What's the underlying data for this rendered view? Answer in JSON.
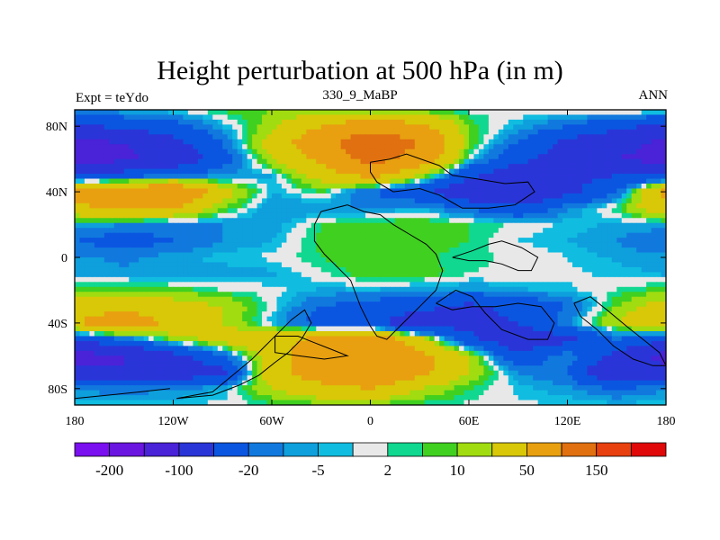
{
  "chart_data": {
    "type": "heatmap",
    "title": "Height perturbation at 500 hPa (in m)",
    "left_string": "Expt = teYdo",
    "center_string": "330_9_MaBP",
    "right_string": "ANN",
    "xlabel": "",
    "ylabel": "",
    "xlim": [
      -180,
      180
    ],
    "ylim": [
      -90,
      90
    ],
    "x_ticks": [
      {
        "value": -180,
        "label": "180"
      },
      {
        "value": -120,
        "label": "120W"
      },
      {
        "value": -60,
        "label": "60W"
      },
      {
        "value": 0,
        "label": "0"
      },
      {
        "value": 60,
        "label": "60E"
      },
      {
        "value": 120,
        "label": "120E"
      },
      {
        "value": 180,
        "label": "180"
      }
    ],
    "y_ticks": [
      {
        "value": 80,
        "label": "80N"
      },
      {
        "value": 40,
        "label": "40N"
      },
      {
        "value": 0,
        "label": "0"
      },
      {
        "value": -40,
        "label": "40S"
      },
      {
        "value": -80,
        "label": "80S"
      }
    ],
    "contour_levels": [
      -200,
      -150,
      -100,
      -50,
      -20,
      -10,
      -5,
      -2,
      2,
      5,
      10,
      20,
      50,
      100,
      150,
      200
    ],
    "colors": [
      "#7a0ff0",
      "#6a15e0",
      "#4a22d8",
      "#2a35d8",
      "#0b56e0",
      "#1179de",
      "#0e9fdd",
      "#10bde0",
      "#e8e8e8",
      "#10d890",
      "#40d020",
      "#a0dc10",
      "#d8c808",
      "#e8a010",
      "#e07010",
      "#e8400e",
      "#e00808"
    ],
    "colorbar_labels": [
      {
        "box": 1,
        "label": "-200"
      },
      {
        "box": 3,
        "label": "-100"
      },
      {
        "box": 5,
        "label": "-20"
      },
      {
        "box": 7,
        "label": "-5"
      },
      {
        "box": 9,
        "label": "2"
      },
      {
        "box": 11,
        "label": "10"
      },
      {
        "box": 13,
        "label": "50"
      },
      {
        "box": 15,
        "label": "150"
      }
    ],
    "field": {
      "lon": [
        -180,
        -150,
        -120,
        -90,
        -60,
        -30,
        0,
        30,
        60,
        90,
        120,
        150,
        180
      ],
      "lat": [
        90,
        80,
        70,
        60,
        50,
        40,
        30,
        20,
        10,
        0,
        -10,
        -20,
        -30,
        -40,
        -50,
        -60,
        -70,
        -80,
        -90
      ],
      "values": [
        [
          -8,
          -4,
          0,
          6,
          10,
          8,
          6,
          3,
          1,
          1,
          3,
          8,
          5
        ],
        [
          -60,
          -40,
          -30,
          -5,
          15,
          50,
          80,
          60,
          8,
          -5,
          -20,
          -40,
          -60
        ],
        [
          -110,
          -100,
          -60,
          -20,
          30,
          80,
          140,
          100,
          10,
          -20,
          -60,
          -80,
          -110
        ],
        [
          -120,
          -110,
          -80,
          -30,
          20,
          60,
          120,
          80,
          0,
          -40,
          -70,
          -100,
          -120
        ],
        [
          -40,
          -30,
          -20,
          -10,
          -5,
          30,
          60,
          20,
          -40,
          -80,
          -60,
          -50,
          -40
        ],
        [
          60,
          80,
          100,
          30,
          -5,
          5,
          -20,
          -40,
          -90,
          -100,
          -60,
          -20,
          60
        ],
        [
          40,
          60,
          50,
          10,
          -10,
          -10,
          -10,
          -5,
          -20,
          -40,
          -10,
          5,
          40
        ],
        [
          -6,
          -10,
          -15,
          -10,
          -8,
          5,
          8,
          10,
          5,
          1,
          -3,
          -6,
          -6
        ],
        [
          -20,
          -30,
          -20,
          -10,
          -5,
          6,
          10,
          8,
          5,
          -2,
          -5,
          -10,
          -20
        ],
        [
          -8,
          -12,
          -6,
          -3,
          -1,
          5,
          10,
          6,
          3,
          1,
          -2,
          -6,
          -8
        ],
        [
          -6,
          -8,
          -10,
          -8,
          -6,
          1,
          8,
          8,
          2,
          1,
          -1,
          -3,
          -6
        ],
        [
          8,
          10,
          8,
          2,
          0,
          -6,
          -5,
          -8,
          -10,
          -6,
          -3,
          2,
          8
        ],
        [
          30,
          40,
          30,
          20,
          0,
          -20,
          -30,
          -40,
          -60,
          -40,
          -20,
          10,
          30
        ],
        [
          50,
          80,
          40,
          20,
          -5,
          -30,
          -40,
          -80,
          -60,
          -50,
          -10,
          20,
          50
        ],
        [
          -40,
          -20,
          10,
          30,
          40,
          60,
          80,
          30,
          -40,
          -80,
          -60,
          -20,
          -40
        ],
        [
          -120,
          -100,
          -60,
          -20,
          30,
          80,
          100,
          60,
          20,
          -40,
          -10,
          -60,
          -120
        ],
        [
          -80,
          -100,
          -80,
          -60,
          40,
          70,
          90,
          60,
          20,
          -10,
          -20,
          -100,
          -80
        ],
        [
          -10,
          -15,
          -10,
          -5,
          20,
          40,
          50,
          20,
          5,
          -3,
          -8,
          -20,
          -10
        ],
        [
          -3,
          -3,
          -2,
          -1,
          3,
          6,
          6,
          3,
          1,
          -1,
          -2,
          -3,
          -3
        ]
      ]
    },
    "coastlines": [
      [
        [
          0,
          58
        ],
        [
          12,
          60
        ],
        [
          22,
          63
        ],
        [
          42,
          56
        ],
        [
          50,
          50
        ],
        [
          64,
          48
        ],
        [
          82,
          45
        ],
        [
          96,
          46
        ],
        [
          100,
          40
        ],
        [
          88,
          32
        ],
        [
          72,
          30
        ],
        [
          56,
          30
        ],
        [
          42,
          38
        ],
        [
          30,
          42
        ],
        [
          14,
          40
        ],
        [
          4,
          46
        ],
        [
          0,
          52
        ],
        [
          0,
          58
        ]
      ],
      [
        [
          -30,
          28
        ],
        [
          -14,
          32
        ],
        [
          -4,
          28
        ],
        [
          6,
          26
        ],
        [
          14,
          20
        ],
        [
          24,
          14
        ],
        [
          34,
          8
        ],
        [
          40,
          2
        ],
        [
          44,
          -8
        ],
        [
          40,
          -20
        ],
        [
          30,
          -30
        ],
        [
          20,
          -40
        ],
        [
          10,
          -50
        ],
        [
          4,
          -48
        ],
        [
          0,
          -42
        ],
        [
          -6,
          -30
        ],
        [
          -12,
          -14
        ],
        [
          -20,
          -6
        ],
        [
          -28,
          2
        ],
        [
          -34,
          10
        ],
        [
          -34,
          20
        ],
        [
          -30,
          28
        ]
      ],
      [
        [
          50,
          0
        ],
        [
          62,
          4
        ],
        [
          72,
          8
        ],
        [
          80,
          10
        ],
        [
          92,
          6
        ],
        [
          102,
          0
        ],
        [
          98,
          -8
        ],
        [
          90,
          -8
        ],
        [
          80,
          -4
        ],
        [
          70,
          -2
        ],
        [
          60,
          -2
        ],
        [
          50,
          0
        ]
      ],
      [
        [
          40,
          -28
        ],
        [
          52,
          -20
        ],
        [
          62,
          -24
        ],
        [
          70,
          -34
        ],
        [
          80,
          -44
        ],
        [
          96,
          -50
        ],
        [
          108,
          -50
        ],
        [
          112,
          -40
        ],
        [
          104,
          -30
        ],
        [
          90,
          -28
        ],
        [
          76,
          -30
        ],
        [
          62,
          -30
        ],
        [
          50,
          -32
        ],
        [
          40,
          -28
        ]
      ],
      [
        [
          124,
          -28
        ],
        [
          134,
          -24
        ],
        [
          144,
          -32
        ],
        [
          156,
          -42
        ],
        [
          166,
          -50
        ],
        [
          176,
          -58
        ],
        [
          180,
          -66
        ],
        [
          172,
          -66
        ],
        [
          160,
          -62
        ],
        [
          148,
          -54
        ],
        [
          138,
          -44
        ],
        [
          128,
          -36
        ],
        [
          124,
          -28
        ]
      ],
      [
        [
          -58,
          -48
        ],
        [
          -44,
          -48
        ],
        [
          -34,
          -52
        ],
        [
          -24,
          -56
        ],
        [
          -14,
          -60
        ],
        [
          -28,
          -62
        ],
        [
          -44,
          -60
        ],
        [
          -58,
          -58
        ],
        [
          -58,
          -48
        ]
      ],
      [
        [
          -118,
          -86
        ],
        [
          -96,
          -82
        ],
        [
          -84,
          -72
        ],
        [
          -72,
          -62
        ],
        [
          -64,
          -54
        ],
        [
          -56,
          -46
        ],
        [
          -48,
          -38
        ],
        [
          -40,
          -32
        ],
        [
          -36,
          -40
        ],
        [
          -42,
          -50
        ],
        [
          -50,
          -58
        ],
        [
          -58,
          -64
        ],
        [
          -68,
          -72
        ],
        [
          -80,
          -78
        ],
        [
          -96,
          -84
        ],
        [
          -118,
          -86
        ]
      ],
      [
        [
          -180,
          -86
        ],
        [
          -160,
          -84
        ],
        [
          -140,
          -82
        ],
        [
          -122,
          -80
        ]
      ]
    ]
  }
}
